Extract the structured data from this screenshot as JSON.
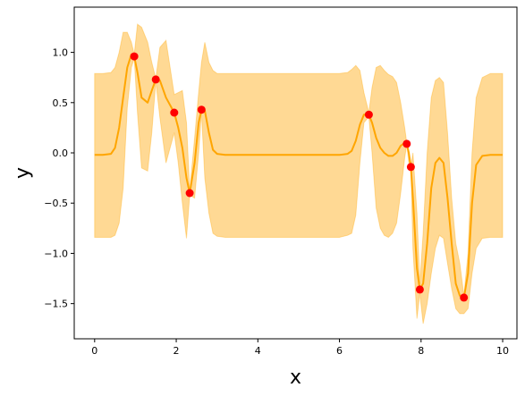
{
  "chart_data": {
    "type": "line",
    "title": "",
    "xlabel": "x",
    "ylabel": "y",
    "xlim": [
      -0.5,
      10.35
    ],
    "ylim": [
      -1.85,
      1.45
    ],
    "xticks": [
      0,
      2,
      4,
      6,
      8,
      10
    ],
    "xtick_labels": [
      "0",
      "2",
      "4",
      "6",
      "8",
      "10"
    ],
    "yticks": [
      1.0,
      0.5,
      0.0,
      -0.5,
      -1.0,
      -1.5
    ],
    "ytick_labels": [
      "1.0",
      "0.5",
      "0.0",
      "−0.5",
      "−1.0",
      "−1.5"
    ],
    "grid": false,
    "colors": {
      "mean": "#ffa500",
      "band": "#ffa500",
      "points": "#ff0000"
    },
    "mean": {
      "x": [
        0,
        0.2,
        0.4,
        0.5,
        0.6,
        0.7,
        0.8,
        0.9,
        0.97,
        1.05,
        1.15,
        1.3,
        1.4,
        1.5,
        1.6,
        1.75,
        1.95,
        2.05,
        2.15,
        2.25,
        2.33,
        2.45,
        2.55,
        2.62,
        2.7,
        2.8,
        2.9,
        3.0,
        3.2,
        3.5,
        4,
        5,
        6,
        6.2,
        6.3,
        6.4,
        6.5,
        6.6,
        6.72,
        6.8,
        6.9,
        7.0,
        7.1,
        7.2,
        7.3,
        7.4,
        7.5,
        7.6,
        7.65,
        7.7,
        7.75,
        7.8,
        7.9,
        7.97,
        8.05,
        8.15,
        8.25,
        8.35,
        8.45,
        8.55,
        8.65,
        8.75,
        8.85,
        8.95,
        9.05,
        9.15,
        9.25,
        9.35,
        9.5,
        9.7,
        10
      ],
      "y": [
        -0.02,
        -0.02,
        -0.01,
        0.05,
        0.25,
        0.55,
        0.85,
        0.98,
        0.96,
        0.8,
        0.55,
        0.5,
        0.62,
        0.73,
        0.72,
        0.55,
        0.4,
        0.25,
        0.05,
        -0.25,
        -0.4,
        -0.1,
        0.3,
        0.43,
        0.42,
        0.2,
        0.03,
        -0.01,
        -0.02,
        -0.02,
        -0.02,
        -0.02,
        -0.02,
        -0.01,
        0.02,
        0.12,
        0.28,
        0.38,
        0.38,
        0.3,
        0.15,
        0.05,
        0.0,
        -0.03,
        -0.03,
        0.0,
        0.07,
        0.1,
        0.09,
        0.0,
        -0.14,
        -0.45,
        -1.15,
        -1.36,
        -1.3,
        -0.9,
        -0.35,
        -0.1,
        -0.05,
        -0.1,
        -0.45,
        -0.9,
        -1.3,
        -1.42,
        -1.44,
        -1.2,
        -0.5,
        -0.12,
        -0.03,
        -0.02,
        -0.02
      ]
    },
    "confidence_band": {
      "x": [
        0,
        0.2,
        0.4,
        0.5,
        0.6,
        0.7,
        0.8,
        0.9,
        0.97,
        1.05,
        1.15,
        1.3,
        1.4,
        1.5,
        1.6,
        1.75,
        1.95,
        2.05,
        2.15,
        2.25,
        2.33,
        2.45,
        2.55,
        2.62,
        2.7,
        2.8,
        2.9,
        3.0,
        3.2,
        3.5,
        4,
        5,
        6,
        6.2,
        6.3,
        6.4,
        6.5,
        6.6,
        6.72,
        6.8,
        6.9,
        7.0,
        7.1,
        7.2,
        7.3,
        7.4,
        7.5,
        7.6,
        7.65,
        7.7,
        7.75,
        7.8,
        7.9,
        7.97,
        8.05,
        8.15,
        8.25,
        8.35,
        8.45,
        8.55,
        8.65,
        8.75,
        8.85,
        8.95,
        9.05,
        9.15,
        9.25,
        9.35,
        9.5,
        9.7,
        10
      ],
      "upper": [
        0.79,
        0.79,
        0.8,
        0.85,
        1.0,
        1.2,
        1.2,
        1.1,
        0.98,
        1.28,
        1.25,
        1.1,
        0.9,
        0.74,
        1.05,
        1.12,
        0.58,
        0.6,
        0.62,
        0.3,
        -0.38,
        0.15,
        0.6,
        0.9,
        1.1,
        0.9,
        0.82,
        0.79,
        0.79,
        0.79,
        0.79,
        0.79,
        0.79,
        0.8,
        0.83,
        0.87,
        0.82,
        0.6,
        0.4,
        0.65,
        0.85,
        0.87,
        0.82,
        0.78,
        0.76,
        0.7,
        0.5,
        0.25,
        0.1,
        -0.05,
        -0.13,
        0.0,
        -0.6,
        -1.3,
        -0.8,
        0.0,
        0.55,
        0.72,
        0.75,
        0.7,
        0.2,
        -0.45,
        -0.9,
        -1.1,
        -1.42,
        -1.0,
        0.0,
        0.55,
        0.75,
        0.79,
        0.79
      ],
      "lower": [
        -0.84,
        -0.84,
        -0.84,
        -0.82,
        -0.7,
        -0.35,
        0.45,
        0.85,
        0.94,
        0.4,
        -0.15,
        -0.18,
        0.2,
        0.71,
        0.35,
        -0.1,
        0.2,
        -0.1,
        -0.5,
        -0.85,
        -0.42,
        -0.45,
        0.0,
        0.4,
        -0.25,
        -0.6,
        -0.8,
        -0.83,
        -0.84,
        -0.84,
        -0.84,
        -0.84,
        -0.84,
        -0.82,
        -0.8,
        -0.62,
        -0.1,
        0.3,
        0.36,
        0.0,
        -0.55,
        -0.75,
        -0.82,
        -0.84,
        -0.8,
        -0.7,
        -0.4,
        -0.05,
        0.08,
        -0.1,
        -0.15,
        -0.95,
        -1.65,
        -1.4,
        -1.7,
        -1.5,
        -1.2,
        -0.95,
        -0.82,
        -0.85,
        -1.1,
        -1.35,
        -1.55,
        -1.6,
        -1.6,
        -1.55,
        -1.2,
        -0.95,
        -0.85,
        -0.84,
        -0.84
      ]
    },
    "observations": {
      "x": [
        0.97,
        1.5,
        1.95,
        2.33,
        2.62,
        6.72,
        7.65,
        7.75,
        7.97,
        9.05
      ],
      "y": [
        0.96,
        0.73,
        0.4,
        -0.4,
        0.43,
        0.38,
        0.09,
        -0.14,
        -1.36,
        -1.44
      ]
    }
  }
}
